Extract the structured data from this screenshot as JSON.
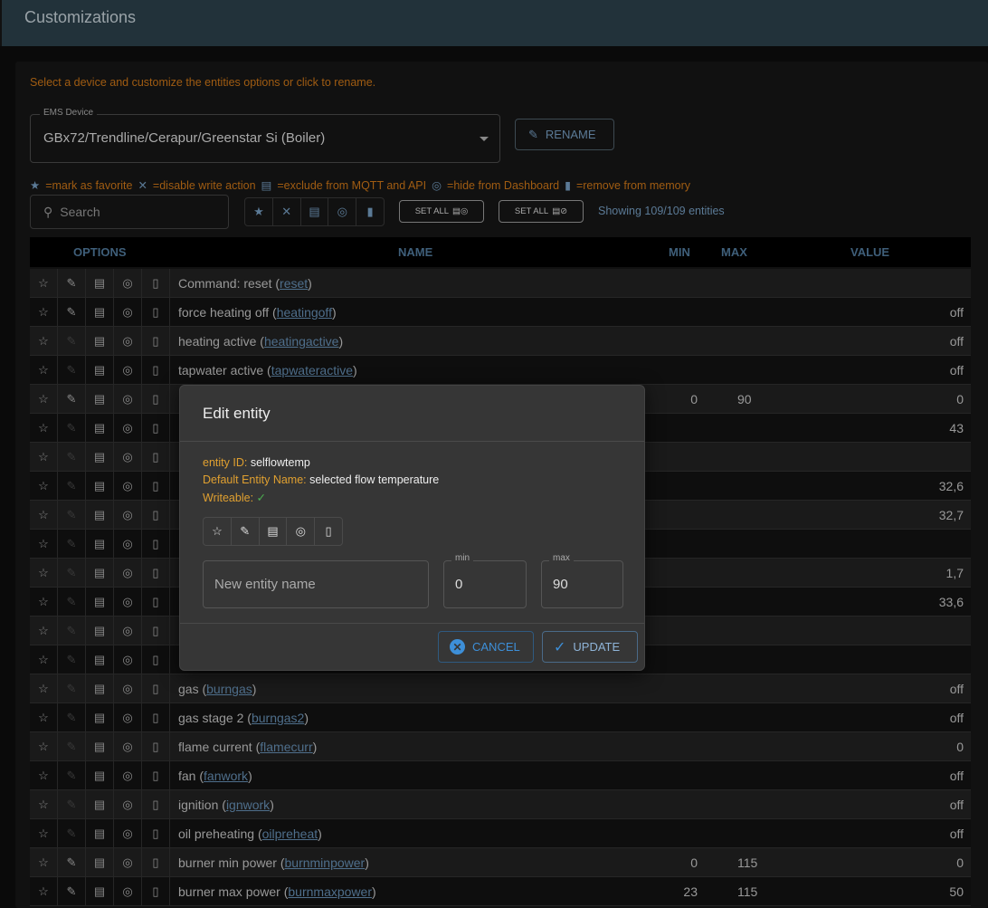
{
  "header": {
    "title": "Customizations"
  },
  "hint": "Select a device and customize the entities options or click to rename.",
  "device": {
    "label": "EMS Device",
    "value": "GBx72/Trendline/Cerapur/Greenstar Si (Boiler)"
  },
  "rename_label": "RENAME",
  "legend": [
    "=mark as favorite",
    "=disable write action",
    "=exclude from MQTT and API",
    "=hide from Dashboard",
    "=remove from memory"
  ],
  "search": {
    "placeholder": "Search"
  },
  "set_all_1": "SET ALL",
  "set_all_2": "SET ALL",
  "showing": "Showing 109/109 entities",
  "columns": {
    "options": "OPTIONS",
    "name": "NAME",
    "min": "MIN",
    "max": "MAX",
    "value": "VALUE"
  },
  "rows": [
    {
      "name": "Command: reset",
      "id": "reset",
      "min": "",
      "max": "",
      "value": "",
      "writeable": true
    },
    {
      "name": "force heating off",
      "id": "heatingoff",
      "min": "",
      "max": "",
      "value": "off",
      "writeable": true
    },
    {
      "name": "heating active",
      "id": "heatingactive",
      "min": "",
      "max": "",
      "value": "off",
      "writeable": false
    },
    {
      "name": "tapwater active",
      "id": "tapwateractive",
      "min": "",
      "max": "",
      "value": "off",
      "writeable": false
    },
    {
      "name": "",
      "id": "",
      "min": "0",
      "max": "90",
      "value": "0",
      "writeable": true
    },
    {
      "name": "",
      "id": "",
      "min": "",
      "max": "",
      "value": "43",
      "writeable": false
    },
    {
      "name": "",
      "id": "",
      "min": "",
      "max": "",
      "value": "",
      "writeable": false
    },
    {
      "name": "",
      "id": "",
      "min": "",
      "max": "",
      "value": "32,6",
      "writeable": false
    },
    {
      "name": "",
      "id": "",
      "min": "",
      "max": "",
      "value": "32,7",
      "writeable": false
    },
    {
      "name": "",
      "id": "",
      "min": "",
      "max": "",
      "value": "",
      "writeable": false
    },
    {
      "name": "",
      "id": "",
      "min": "",
      "max": "",
      "value": "1,7",
      "writeable": false
    },
    {
      "name": "",
      "id": "",
      "min": "",
      "max": "",
      "value": "33,6",
      "writeable": false
    },
    {
      "name": "",
      "id": "",
      "min": "",
      "max": "",
      "value": "",
      "writeable": false
    },
    {
      "name": "",
      "id": "",
      "min": "",
      "max": "",
      "value": "",
      "writeable": false
    },
    {
      "name": "gas",
      "id": "burngas",
      "min": "",
      "max": "",
      "value": "off",
      "writeable": false
    },
    {
      "name": "gas stage 2",
      "id": "burngas2",
      "min": "",
      "max": "",
      "value": "off",
      "writeable": false
    },
    {
      "name": "flame current",
      "id": "flamecurr",
      "min": "",
      "max": "",
      "value": "0",
      "writeable": false
    },
    {
      "name": "fan",
      "id": "fanwork",
      "min": "",
      "max": "",
      "value": "off",
      "writeable": false
    },
    {
      "name": "ignition",
      "id": "ignwork",
      "min": "",
      "max": "",
      "value": "off",
      "writeable": false
    },
    {
      "name": "oil preheating",
      "id": "oilpreheat",
      "min": "",
      "max": "",
      "value": "off",
      "writeable": false
    },
    {
      "name": "burner min power",
      "id": "burnminpower",
      "min": "0",
      "max": "115",
      "value": "0",
      "writeable": true
    },
    {
      "name": "burner max power",
      "id": "burnmaxpower",
      "min": "23",
      "max": "115",
      "value": "50",
      "writeable": true
    }
  ],
  "modal": {
    "title": "Edit entity",
    "entity_id_label": "entity ID:",
    "entity_id": "selflowtemp",
    "default_name_label": "Default Entity Name:",
    "default_name": "selected flow temperature",
    "writeable_label": "Writeable:",
    "writeable_mark": "✓",
    "name_placeholder": "New entity name",
    "min_label": "min",
    "min_value": "0",
    "max_label": "max",
    "max_value": "90",
    "cancel": "CANCEL",
    "update": "UPDATE"
  },
  "colors": {
    "accent": "#3d8fd8",
    "warning": "#e0a030",
    "header": "#22323a",
    "writeable": "#4caf50"
  }
}
